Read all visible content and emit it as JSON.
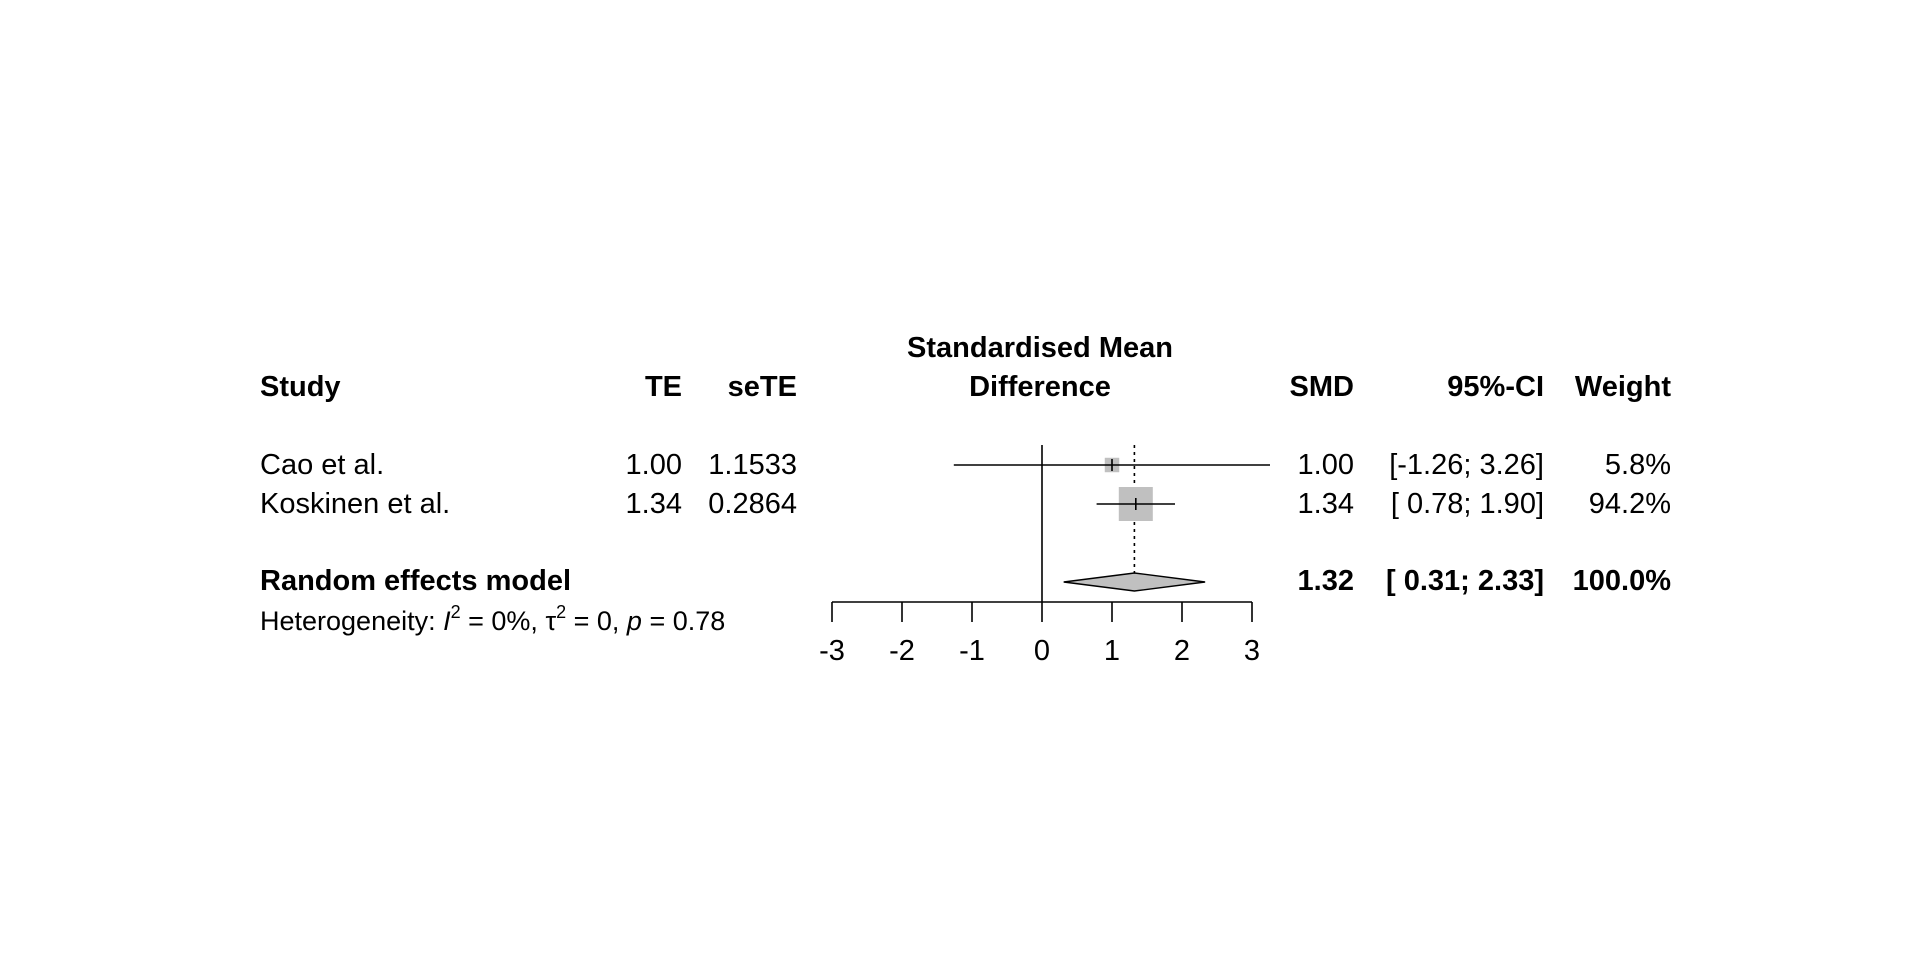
{
  "headers": {
    "study": "Study",
    "te": "TE",
    "sete": "seTE",
    "plot_title_line1": "Standardised Mean",
    "plot_title_line2": "Difference",
    "smd": "SMD",
    "ci": "95%-CI",
    "weight": "Weight"
  },
  "studies": [
    {
      "name": "Cao et al.",
      "te": "1.00",
      "sete": "1.1533",
      "smd": "1.00",
      "ci": "[-1.26; 3.26]",
      "weight": "5.8%"
    },
    {
      "name": "Koskinen et al.",
      "te": "1.34",
      "sete": "0.2864",
      "smd": "1.34",
      "ci": "[ 0.78; 1.90]",
      "weight": "94.2%"
    }
  ],
  "pooled": {
    "label": "Random effects model",
    "smd": "1.32",
    "ci": "[ 0.31; 2.33]",
    "weight": "100.0%"
  },
  "heterogeneity": {
    "prefix": "Heterogeneity: ",
    "i2_symbol": "I",
    "i2_value": " = 0%, ",
    "tau_symbol": "τ",
    "tau_value": " = 0, ",
    "p_symbol": "p",
    "p_value": " = 0.78",
    "sup": "2"
  },
  "chart_data": {
    "type": "forest",
    "x_ticks": [
      -3,
      -2,
      -1,
      0,
      1,
      2,
      3
    ],
    "xlim": [
      -3,
      3
    ],
    "null_line": 0,
    "pooled_reference_line": 1.32,
    "studies": [
      {
        "name": "Cao et al.",
        "estimate": 1.0,
        "lower": -1.26,
        "upper": 3.26,
        "weight_pct": 5.8
      },
      {
        "name": "Koskinen et al.",
        "estimate": 1.34,
        "lower": 0.78,
        "upper": 1.9,
        "weight_pct": 94.2
      }
    ],
    "pooled": {
      "estimate": 1.32,
      "lower": 0.31,
      "upper": 2.33
    },
    "colors": {
      "box": "#c0c0c0",
      "diamond": "#c0c0c0",
      "line": "#000000"
    }
  }
}
